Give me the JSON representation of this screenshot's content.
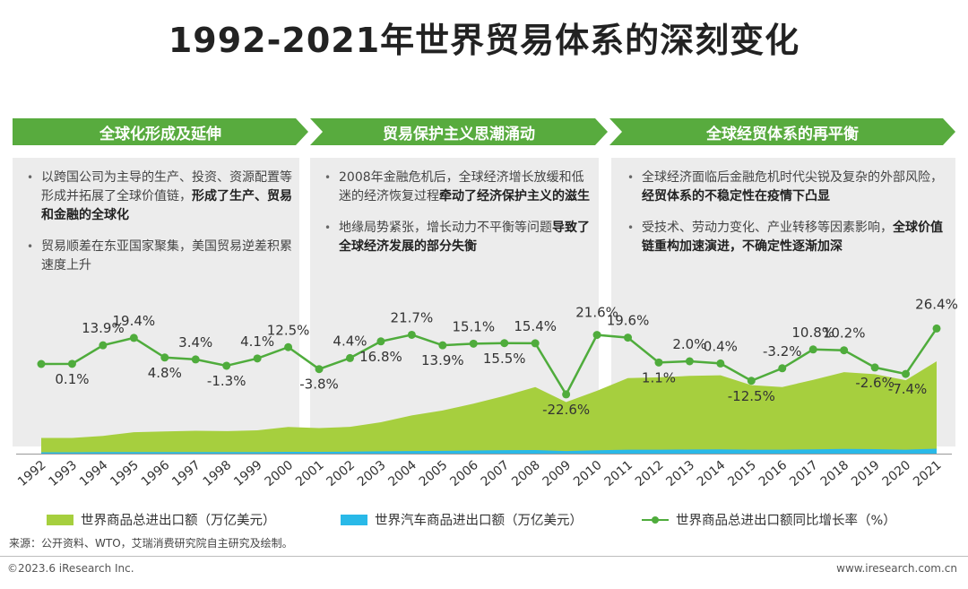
{
  "title": "1992-2021年世界贸易体系的深刻变化",
  "colors": {
    "green": "#58ab3e",
    "light_green": "#a6cf3e",
    "cyan": "#29b9e8",
    "line": "#4fac3c",
    "panel": "#ececec"
  },
  "phases": [
    {
      "label": "全球化形成及延伸",
      "bullets": [
        [
          {
            "t": "以跨国公司为主导的生产、投资、资源配置等形成并拓展了全球价值链，"
          },
          {
            "t": "形成了生产、贸易和金融的全球化",
            "b": true
          }
        ],
        [
          {
            "t": "贸易顺差在东亚国家聚集，美国贸易逆差积累速度上升"
          }
        ]
      ]
    },
    {
      "label": "贸易保护主义思潮涌动",
      "bullets": [
        [
          {
            "t": "2008年金融危机后，全球经济增长放缓和低迷的经济恢复过程"
          },
          {
            "t": "牵动了经济保护主义的滋生",
            "b": true
          }
        ],
        [
          {
            "t": "地缘局势紧张，增长动力不平衡等问题"
          },
          {
            "t": "导致了全球经济发展的部分失衡",
            "b": true
          }
        ]
      ]
    },
    {
      "label": "全球经贸体系的再平衡",
      "bullets": [
        [
          {
            "t": "全球经济面临后金融危机时代尖锐及复杂的外部风险，"
          },
          {
            "t": "经贸体系的不稳定性在疫情下凸显",
            "b": true
          }
        ],
        [
          {
            "t": "受技术、劳动力变化、产业转移等因素影响，"
          },
          {
            "t": "全球价值链重构加速演进，不确定性逐渐加深",
            "b": true
          }
        ]
      ]
    }
  ],
  "chart_data": {
    "type": "area+line",
    "categories": [
      "1992",
      "1993",
      "1994",
      "1995",
      "1996",
      "1997",
      "1998",
      "1999",
      "2000",
      "2001",
      "2002",
      "2003",
      "2004",
      "2005",
      "2006",
      "2007",
      "2008",
      "2009",
      "2010",
      "2011",
      "2012",
      "2013",
      "2014",
      "2015",
      "2016",
      "2017",
      "2018",
      "2019",
      "2020",
      "2021"
    ],
    "series": [
      {
        "name": "世界商品总进出口额（万亿美元）",
        "kind": "area",
        "values": [
          7.6,
          7.6,
          8.6,
          10.4,
          10.8,
          11.1,
          10.9,
          11.3,
          12.9,
          12.4,
          13.0,
          15.2,
          18.5,
          20.9,
          24.2,
          28.0,
          32.3,
          25.0,
          30.5,
          36.6,
          37.0,
          37.7,
          38.0,
          33.2,
          32.3,
          35.8,
          39.5,
          38.5,
          35.6,
          44.8
        ]
      },
      {
        "name": "世界汽车商品进出口额（万亿美元）",
        "kind": "area",
        "values": [
          0.4,
          0.4,
          0.45,
          0.5,
          0.5,
          0.5,
          0.5,
          0.5,
          0.55,
          0.55,
          0.6,
          0.7,
          0.8,
          0.85,
          0.95,
          1.05,
          1.1,
          0.8,
          1.0,
          1.2,
          1.2,
          1.25,
          1.3,
          1.2,
          1.2,
          1.3,
          1.4,
          1.35,
          1.2,
          1.5
        ]
      },
      {
        "name": "世界商品总进出口额同比增长率（%）",
        "kind": "line",
        "values": [
          null,
          0.1,
          13.9,
          19.4,
          4.8,
          3.4,
          -1.3,
          4.1,
          12.5,
          -3.8,
          4.4,
          16.8,
          21.7,
          13.9,
          15.1,
          15.5,
          15.4,
          -22.6,
          21.6,
          19.6,
          1.1,
          2.0,
          0.4,
          -12.5,
          -3.2,
          10.8,
          10.2,
          -2.6,
          -7.4,
          26.4
        ],
        "labels": [
          "",
          "0.1%",
          "13.9%",
          "19.4%",
          "4.8%",
          "3.4%",
          "-1.3%",
          "4.1%",
          "12.5%",
          "-3.8%",
          "4.4%",
          "16.8%",
          "21.7%",
          "13.9%",
          "15.1%",
          "15.5%",
          "15.4%",
          "-22.6%",
          "21.6%",
          "19.6%",
          "1.1%",
          "2.0%",
          "0.4%",
          "-12.5%",
          "-3.2%",
          "10.8%",
          "10.2%",
          "-2.6%",
          "-7.4%",
          "26.4%"
        ]
      }
    ]
  },
  "legend": [
    {
      "label": "世界商品总进出口额（万亿美元）"
    },
    {
      "label": "世界汽车商品进出口额（万亿美元）"
    },
    {
      "label": "世界商品总进出口额同比增长率（%）"
    }
  ],
  "source": "来源：公开资料、WTO，艾瑞消费研究院自主研究及绘制。",
  "footer": {
    "left": "©2023.6 iResearch Inc.",
    "right": "www.iresearch.com.cn"
  }
}
